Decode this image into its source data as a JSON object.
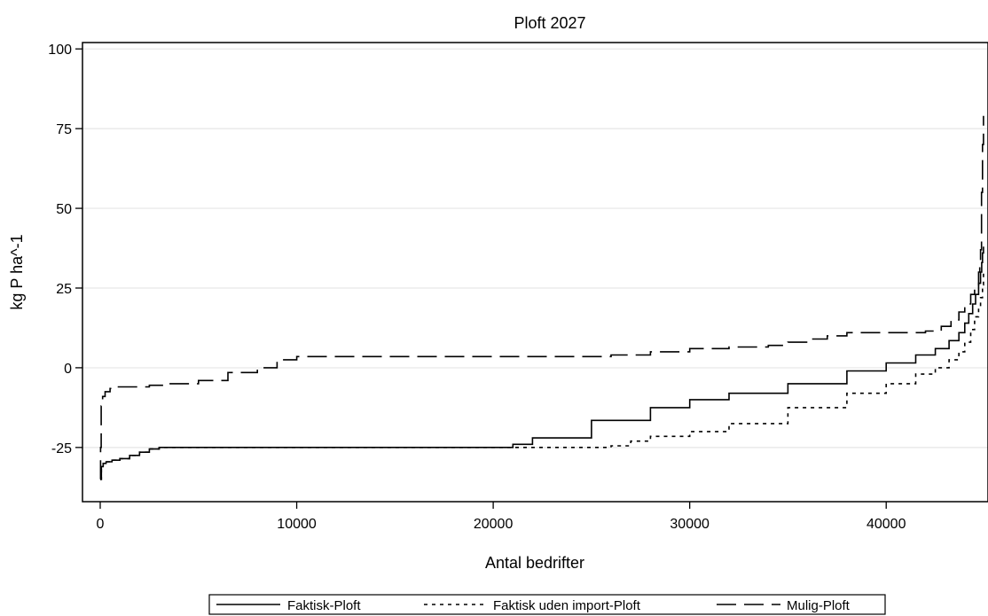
{
  "chart_data": {
    "type": "line",
    "title": "Ploft 2027",
    "xlabel": "Antal bedrifter",
    "ylabel": "kg P ha^-1",
    "xlim": [
      0,
      45000
    ],
    "ylim": [
      -42,
      102
    ],
    "x_ticks": [
      0,
      10000,
      20000,
      30000,
      40000
    ],
    "y_ticks": [
      -25,
      0,
      25,
      50,
      75,
      100
    ],
    "grid": "horizontal",
    "legend_position": "bottom",
    "series": [
      {
        "name": "Faktisk-Ploft",
        "style": "solid",
        "color": "#000000",
        "x": [
          0,
          60,
          150,
          300,
          600,
          1000,
          1500,
          2000,
          2500,
          3000,
          5000,
          10000,
          15000,
          19000,
          21000,
          22000,
          25000,
          28000,
          30000,
          32000,
          35000,
          38000,
          40000,
          41500,
          42500,
          43200,
          43700,
          44000,
          44200,
          44400,
          44550,
          44700,
          44800,
          44860,
          44900,
          44950
        ],
        "y": [
          -35,
          -31,
          -30,
          -29.5,
          -29,
          -28.5,
          -27.5,
          -26.5,
          -25.5,
          -25,
          -25,
          -25,
          -25,
          -25,
          -24,
          -22,
          -16.5,
          -12.5,
          -10,
          -8,
          -5,
          -1,
          1.5,
          4,
          6,
          8.5,
          11,
          14,
          17,
          20,
          23,
          26.5,
          30,
          33,
          36,
          38
        ]
      },
      {
        "name": "Faktisk uden import-Ploft",
        "style": "dashed",
        "color": "#000000",
        "x": [
          0,
          60,
          150,
          300,
          600,
          1000,
          1500,
          2000,
          2500,
          3000,
          5000,
          10000,
          15000,
          20000,
          22000,
          24000,
          26000,
          27000,
          28000,
          30000,
          32000,
          35000,
          38000,
          40000,
          41500,
          42500,
          43200,
          43700,
          44000,
          44300,
          44500,
          44700,
          44800,
          44900,
          44950
        ],
        "y": [
          -35,
          -31,
          -30,
          -29.5,
          -29,
          -28.5,
          -27.5,
          -26.5,
          -25.5,
          -25,
          -25,
          -25,
          -25,
          -25,
          -25,
          -25,
          -24.5,
          -23,
          -21.5,
          -20,
          -17.5,
          -12.5,
          -8,
          -5,
          -2,
          0,
          2.5,
          5,
          8,
          12,
          16,
          19,
          22,
          26,
          30
        ]
      },
      {
        "name": "Mulig-Ploft",
        "style": "longdash",
        "color": "#000000",
        "x": [
          0,
          20,
          50,
          120,
          250,
          500,
          800,
          1500,
          2500,
          3500,
          5000,
          6500,
          8000,
          9000,
          10000,
          15000,
          20000,
          25000,
          26000,
          28000,
          30000,
          32000,
          34000,
          35000,
          36000,
          37000,
          38000,
          40000,
          42000,
          42800,
          43300,
          43700,
          44000,
          44300,
          44500,
          44600,
          44700,
          44760,
          44800,
          44850,
          44900,
          44950
        ],
        "y": [
          -35,
          -25,
          -12,
          -9,
          -7.5,
          -6.5,
          -6,
          -6,
          -5.5,
          -5,
          -4,
          -1.5,
          0,
          2.5,
          3.5,
          3.5,
          3.5,
          3.5,
          4,
          5,
          6,
          6.5,
          7,
          8,
          9,
          10,
          11,
          11,
          11.5,
          13,
          15,
          17.5,
          20,
          23,
          26,
          26,
          30,
          34,
          37,
          55,
          70,
          79
        ]
      }
    ]
  }
}
